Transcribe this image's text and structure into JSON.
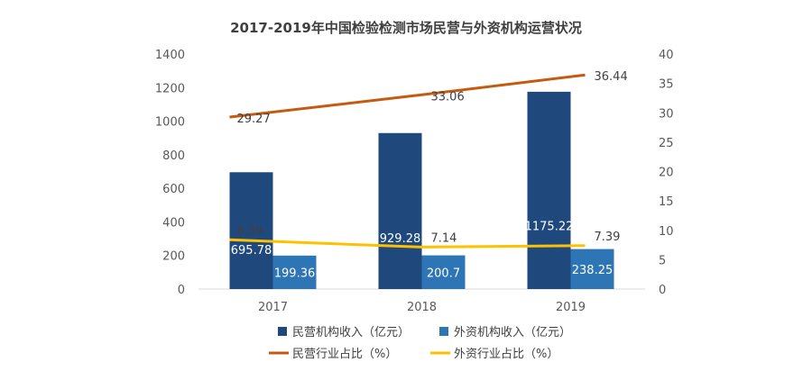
{
  "chart_data": {
    "type": "bar",
    "title": "2017-2019年中国检验检测市场民营与外资机构运营状况",
    "categories": [
      "2017",
      "2018",
      "2019"
    ],
    "series": [
      {
        "name": "民营机构收入（亿元）",
        "type": "bar",
        "axis": "left",
        "color": "#1F497D",
        "values": [
          695.78,
          929.28,
          1175.22
        ],
        "labels": [
          "695.78",
          "929.28",
          "1175.22"
        ]
      },
      {
        "name": "外资机构收入（亿元）",
        "type": "bar",
        "axis": "left",
        "color": "#2E75B6",
        "values": [
          199.36,
          200.7,
          238.25
        ],
        "labels": [
          "199.36",
          "200.7",
          "238.25"
        ]
      },
      {
        "name": "民营行业占比（%）",
        "type": "line",
        "axis": "right",
        "color": "#C55A11",
        "values": [
          29.27,
          33.06,
          36.44
        ],
        "labels": [
          "29.27",
          "33.06",
          "36.44"
        ]
      },
      {
        "name": "外资行业占比（%）",
        "type": "line",
        "axis": "right",
        "color": "#FFC000",
        "values": [
          8.39,
          7.14,
          7.39
        ],
        "labels": [
          "8.39",
          "7.14",
          "7.39"
        ]
      }
    ],
    "y_left": {
      "min": 0,
      "max": 1400,
      "ticks": [
        "0",
        "200",
        "400",
        "600",
        "800",
        "1000",
        "1200",
        "1400"
      ]
    },
    "y_right": {
      "min": 0,
      "max": 40,
      "ticks": [
        "0",
        "5",
        "10",
        "15",
        "20",
        "25",
        "30",
        "35",
        "40"
      ]
    },
    "grid": false,
    "legend_position": "bottom"
  }
}
